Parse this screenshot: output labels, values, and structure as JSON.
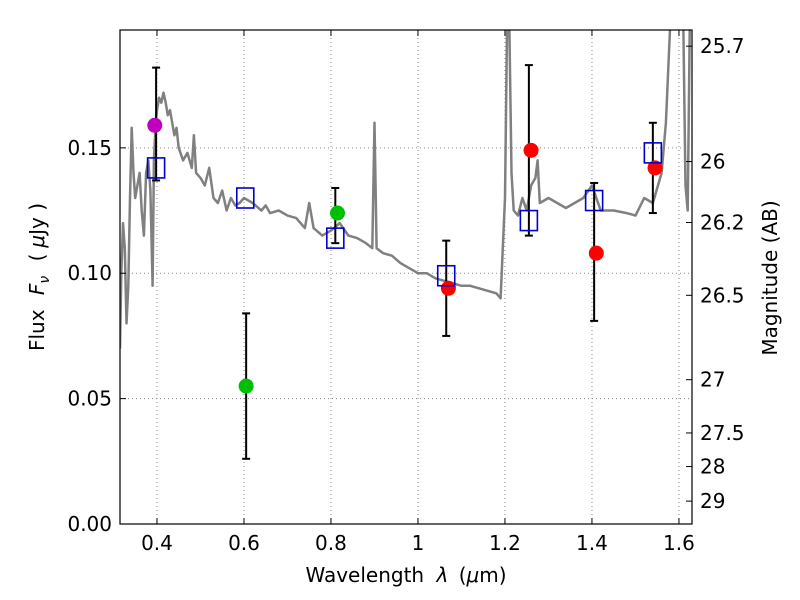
{
  "chart_data": {
    "type": "scatter",
    "xlabel_text": "Wavelength",
    "xlabel_symbol": "λ",
    "xlabel_unit_open": "(",
    "xlabel_unit_mu": "μ",
    "xlabel_unit_rest": "m)",
    "ylabel_text": "Flux",
    "ylabel_symbol": "F",
    "ylabel_subscript": "ν",
    "ylabel_unit_open": "(",
    "ylabel_unit_mu": "μ",
    "ylabel_unit_rest": "Jy )",
    "y2label": "Magnitude (AB)",
    "xlim": [
      0.315,
      1.63
    ],
    "ylim": [
      0.0,
      0.197
    ],
    "grid": true,
    "x_ticks": [
      0.4,
      0.6,
      0.8,
      1.0,
      1.2,
      1.4,
      1.6
    ],
    "x_tick_labels": [
      "0.4",
      "0.6",
      "0.8",
      "1",
      "1.2",
      "1.4",
      "1.6"
    ],
    "y_ticks": [
      0.0,
      0.05,
      0.1,
      0.15
    ],
    "y_tick_labels": [
      "0.00",
      "0.05",
      "0.10",
      "0.15"
    ],
    "y2_ticks": [
      {
        "mag": 25.7,
        "label": "25.7"
      },
      {
        "mag": 26.0,
        "label": "26"
      },
      {
        "mag": 26.2,
        "label": "26.2"
      },
      {
        "mag": 26.5,
        "label": "26.5"
      },
      {
        "mag": 27.0,
        "label": "27"
      },
      {
        "mag": 27.5,
        "label": "27.5"
      },
      {
        "mag": 28.0,
        "label": "28"
      },
      {
        "mag": 29.0,
        "label": "29"
      }
    ],
    "colors": {
      "spectrum": "#808080",
      "magenta": "#bf00bf",
      "green": "#00bf00",
      "red": "#ff0000",
      "model_box": "#0000cc",
      "errorbar": "#000000",
      "grid": "#888888"
    },
    "spectrum": {
      "name": "template spectrum",
      "x": [
        0.315,
        0.318,
        0.322,
        0.326,
        0.33,
        0.334,
        0.338,
        0.342,
        0.346,
        0.35,
        0.355,
        0.36,
        0.365,
        0.37,
        0.375,
        0.38,
        0.385,
        0.39,
        0.393,
        0.397,
        0.4,
        0.405,
        0.41,
        0.415,
        0.42,
        0.425,
        0.43,
        0.435,
        0.44,
        0.445,
        0.45,
        0.46,
        0.47,
        0.48,
        0.485,
        0.49,
        0.5,
        0.51,
        0.52,
        0.53,
        0.54,
        0.55,
        0.56,
        0.57,
        0.58,
        0.59,
        0.6,
        0.62,
        0.64,
        0.65,
        0.66,
        0.68,
        0.7,
        0.72,
        0.74,
        0.75,
        0.76,
        0.78,
        0.8,
        0.82,
        0.84,
        0.86,
        0.88,
        0.895,
        0.9,
        0.905,
        0.92,
        0.94,
        0.96,
        0.98,
        1.0,
        1.02,
        1.04,
        1.06,
        1.08,
        1.1,
        1.12,
        1.14,
        1.16,
        1.18,
        1.19,
        1.2,
        1.205,
        1.21,
        1.215,
        1.22,
        1.23,
        1.24,
        1.25,
        1.26,
        1.27,
        1.275,
        1.28,
        1.3,
        1.32,
        1.34,
        1.36,
        1.38,
        1.4,
        1.42,
        1.45,
        1.48,
        1.5,
        1.52,
        1.54,
        1.56,
        1.57,
        1.58,
        1.59,
        1.6,
        1.605,
        1.61,
        1.615,
        1.62,
        1.625,
        1.63
      ],
      "y": [
        0.07,
        0.1,
        0.12,
        0.11,
        0.08,
        0.095,
        0.13,
        0.158,
        0.14,
        0.13,
        0.135,
        0.14,
        0.125,
        0.115,
        0.14,
        0.145,
        0.133,
        0.095,
        0.145,
        0.16,
        0.165,
        0.17,
        0.168,
        0.172,
        0.168,
        0.163,
        0.165,
        0.16,
        0.155,
        0.158,
        0.15,
        0.145,
        0.148,
        0.142,
        0.155,
        0.14,
        0.138,
        0.135,
        0.142,
        0.13,
        0.128,
        0.133,
        0.125,
        0.13,
        0.127,
        0.128,
        0.13,
        0.128,
        0.125,
        0.127,
        0.124,
        0.125,
        0.123,
        0.122,
        0.118,
        0.128,
        0.118,
        0.115,
        0.117,
        0.12,
        0.115,
        0.114,
        0.112,
        0.11,
        0.16,
        0.11,
        0.108,
        0.107,
        0.104,
        0.102,
        0.1,
        0.1,
        0.098,
        0.097,
        0.096,
        0.095,
        0.095,
        0.094,
        0.093,
        0.092,
        0.09,
        0.13,
        0.2,
        0.2,
        0.14,
        0.125,
        0.123,
        0.13,
        0.125,
        0.135,
        0.138,
        0.145,
        0.128,
        0.13,
        0.128,
        0.126,
        0.128,
        0.13,
        0.135,
        0.125,
        0.125,
        0.124,
        0.123,
        0.13,
        0.128,
        0.14,
        0.16,
        0.2,
        0.2,
        0.2,
        0.2,
        0.2,
        0.135,
        0.125,
        0.2,
        0.2
      ]
    },
    "observed": [
      {
        "name": "obs-uv",
        "x": 0.395,
        "y": 0.159,
        "color": "magenta",
        "err": null
      },
      {
        "name": "obs-606",
        "x": 0.605,
        "y": 0.055,
        "color": "green",
        "err": [
          0.026,
          0.084
        ]
      },
      {
        "name": "obs-814",
        "x": 0.815,
        "y": 0.124,
        "color": "green",
        "err": null
      },
      {
        "name": "obs-1.05",
        "x": 1.07,
        "y": 0.094,
        "color": "red",
        "err": null
      },
      {
        "name": "obs-1.25",
        "x": 1.26,
        "y": 0.149,
        "color": "red",
        "err": null
      },
      {
        "name": "obs-1.40",
        "x": 1.41,
        "y": 0.108,
        "color": "red",
        "err": null
      },
      {
        "name": "obs-1.55",
        "x": 1.545,
        "y": 0.142,
        "color": "red",
        "err": null
      }
    ],
    "model": [
      {
        "name": "model-uv",
        "x": 0.398,
        "y": 0.142,
        "err": [
          0.137,
          0.182
        ]
      },
      {
        "name": "model-606",
        "x": 0.603,
        "y": 0.13,
        "err": null
      },
      {
        "name": "model-814",
        "x": 0.81,
        "y": 0.114,
        "err": [
          0.112,
          0.134
        ]
      },
      {
        "name": "model-1.05",
        "x": 1.065,
        "y": 0.099,
        "err": [
          0.075,
          0.113
        ]
      },
      {
        "name": "model-1.25",
        "x": 1.255,
        "y": 0.121,
        "err": [
          0.115,
          0.183
        ]
      },
      {
        "name": "model-1.40",
        "x": 1.405,
        "y": 0.129,
        "err": [
          0.081,
          0.136
        ]
      },
      {
        "name": "model-1.55",
        "x": 1.54,
        "y": 0.148,
        "err": [
          0.124,
          0.16
        ]
      }
    ]
  }
}
